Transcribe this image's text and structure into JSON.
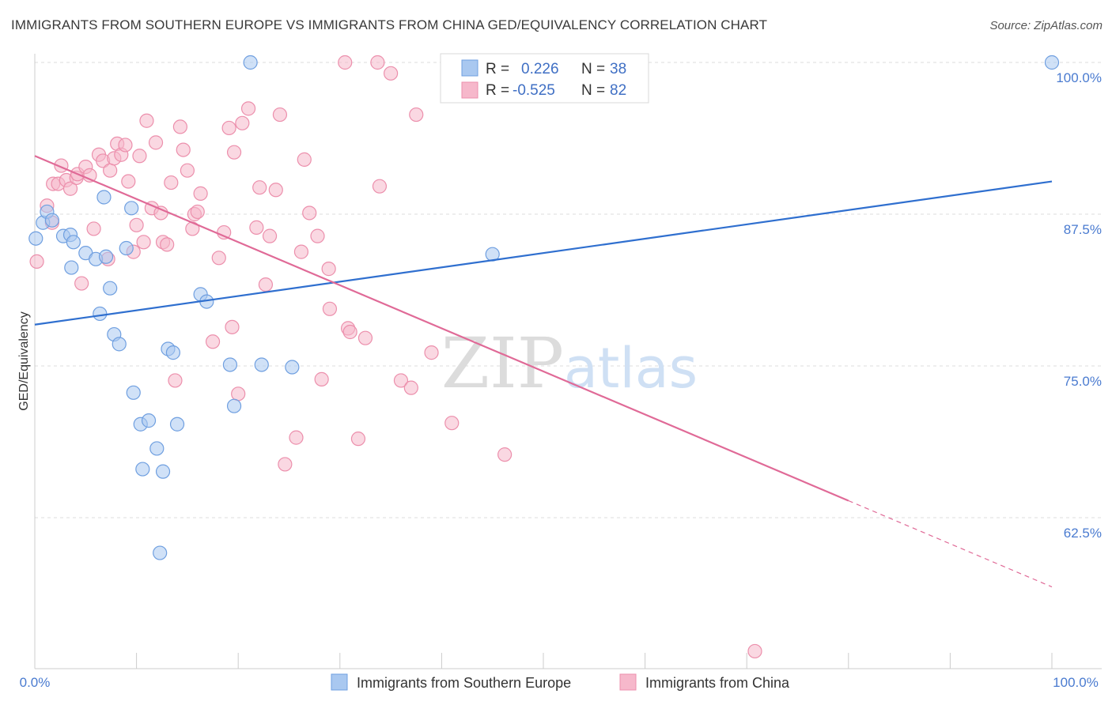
{
  "title": "IMMIGRANTS FROM SOUTHERN EUROPE VS IMMIGRANTS FROM CHINA GED/EQUIVALENCY CORRELATION CHART",
  "source": "Source: ZipAtlas.com",
  "watermark": "ZIPatlas",
  "colors": {
    "blue_fill": "#a9c8f0",
    "blue_stroke": "#6f9fe0",
    "blue_line": "#2f6fcf",
    "pink_fill": "#f6b8cb",
    "pink_stroke": "#ec8fac",
    "pink_line": "#e06a97",
    "tick_text": "#4a7bd0",
    "grid": "#dddddd"
  },
  "legend": {
    "rows": [
      {
        "r_label": "R =",
        "r_value": "0.226",
        "n_label": "N =",
        "n_value": "38"
      },
      {
        "r_label": "R =",
        "r_value": "-0.525",
        "n_label": "N =",
        "n_value": "82"
      }
    ]
  },
  "chart_data": {
    "type": "scatter",
    "ylabel": "GED/Equivalency",
    "xlim": [
      0,
      100
    ],
    "ylim": [
      50,
      101.5
    ],
    "yticks": [
      {
        "value": 100,
        "label": "100.0%"
      },
      {
        "value": 87.5,
        "label": "87.5%"
      },
      {
        "value": 75,
        "label": "75.0%"
      },
      {
        "value": 62.5,
        "label": "62.5%"
      }
    ],
    "xtick_labels": {
      "left": "0.0%",
      "right": "100.0%"
    },
    "series": [
      {
        "name": "Immigrants from Southern Europe",
        "trend": {
          "x": [
            0,
            100
          ],
          "y": [
            78.4,
            90.2
          ]
        },
        "points": [
          [
            0.1,
            85.5
          ],
          [
            0.8,
            86.8
          ],
          [
            1.2,
            87.7
          ],
          [
            1.7,
            87.0
          ],
          [
            2.8,
            85.7
          ],
          [
            3.6,
            83.1
          ],
          [
            3.5,
            85.8
          ],
          [
            3.8,
            85.2
          ],
          [
            5.0,
            84.3
          ],
          [
            6.0,
            83.8
          ],
          [
            7.0,
            84.0
          ],
          [
            6.4,
            79.3
          ],
          [
            6.8,
            88.9
          ],
          [
            7.4,
            81.4
          ],
          [
            7.8,
            77.6
          ],
          [
            8.3,
            76.8
          ],
          [
            9.0,
            84.7
          ],
          [
            9.5,
            88.0
          ],
          [
            9.7,
            72.8
          ],
          [
            10.4,
            70.2
          ],
          [
            10.6,
            66.5
          ],
          [
            11.2,
            70.5
          ],
          [
            12.0,
            68.2
          ],
          [
            12.3,
            59.6
          ],
          [
            12.6,
            66.3
          ],
          [
            13.1,
            76.4
          ],
          [
            13.6,
            76.1
          ],
          [
            14.0,
            70.2
          ],
          [
            16.3,
            80.9
          ],
          [
            16.9,
            80.3
          ],
          [
            19.2,
            75.1
          ],
          [
            19.6,
            71.7
          ],
          [
            21.2,
            100.0
          ],
          [
            22.3,
            75.1
          ],
          [
            25.3,
            74.9
          ],
          [
            45.0,
            84.2
          ],
          [
            100.0,
            100.0
          ]
        ]
      },
      {
        "name": "Immigrants from China",
        "trend": {
          "x": [
            0,
            80
          ],
          "y": [
            92.3,
            63.9
          ]
        },
        "trend_dashed": {
          "x": [
            80,
            100
          ],
          "y": [
            63.9,
            56.8
          ]
        },
        "points": [
          [
            0.2,
            83.6
          ],
          [
            1.2,
            88.2
          ],
          [
            1.7,
            86.8
          ],
          [
            1.8,
            90.0
          ],
          [
            2.3,
            90.0
          ],
          [
            2.6,
            91.5
          ],
          [
            3.1,
            90.3
          ],
          [
            3.5,
            89.6
          ],
          [
            4.1,
            90.5
          ],
          [
            4.2,
            90.8
          ],
          [
            4.6,
            81.8
          ],
          [
            5.0,
            91.4
          ],
          [
            5.4,
            90.7
          ],
          [
            5.8,
            86.3
          ],
          [
            6.3,
            92.4
          ],
          [
            6.7,
            91.9
          ],
          [
            7.2,
            83.8
          ],
          [
            7.4,
            91.1
          ],
          [
            7.8,
            92.1
          ],
          [
            8.1,
            93.3
          ],
          [
            8.5,
            92.4
          ],
          [
            8.9,
            93.2
          ],
          [
            9.2,
            90.2
          ],
          [
            9.7,
            84.4
          ],
          [
            10.0,
            86.6
          ],
          [
            10.3,
            92.3
          ],
          [
            10.7,
            85.2
          ],
          [
            11.0,
            95.2
          ],
          [
            11.5,
            88.0
          ],
          [
            11.9,
            93.4
          ],
          [
            12.4,
            87.6
          ],
          [
            12.6,
            85.2
          ],
          [
            13.0,
            85.0
          ],
          [
            13.4,
            90.1
          ],
          [
            13.8,
            73.8
          ],
          [
            14.3,
            94.7
          ],
          [
            14.6,
            92.8
          ],
          [
            15.0,
            91.1
          ],
          [
            15.5,
            86.3
          ],
          [
            15.7,
            87.5
          ],
          [
            16.0,
            87.7
          ],
          [
            16.3,
            89.2
          ],
          [
            17.5,
            77.0
          ],
          [
            18.1,
            83.9
          ],
          [
            18.6,
            86.0
          ],
          [
            19.1,
            94.6
          ],
          [
            19.4,
            78.2
          ],
          [
            19.6,
            92.6
          ],
          [
            20.0,
            72.7
          ],
          [
            20.4,
            95.0
          ],
          [
            21.0,
            96.2
          ],
          [
            21.8,
            86.4
          ],
          [
            22.1,
            89.7
          ],
          [
            22.7,
            81.7
          ],
          [
            23.1,
            85.7
          ],
          [
            23.7,
            89.5
          ],
          [
            24.1,
            95.7
          ],
          [
            24.6,
            66.9
          ],
          [
            25.7,
            69.1
          ],
          [
            26.2,
            84.4
          ],
          [
            26.5,
            92.0
          ],
          [
            27.0,
            87.6
          ],
          [
            27.8,
            85.7
          ],
          [
            28.2,
            73.9
          ],
          [
            28.9,
            83.0
          ],
          [
            29.0,
            79.7
          ],
          [
            30.5,
            100.0
          ],
          [
            30.8,
            78.1
          ],
          [
            31.0,
            77.8
          ],
          [
            31.8,
            69.0
          ],
          [
            32.5,
            77.3
          ],
          [
            33.7,
            100.0
          ],
          [
            33.9,
            89.8
          ],
          [
            35.0,
            99.1
          ],
          [
            36.0,
            73.8
          ],
          [
            37.0,
            73.2
          ],
          [
            37.5,
            95.7
          ],
          [
            39.0,
            76.1
          ],
          [
            41.0,
            70.3
          ],
          [
            46.2,
            67.7
          ],
          [
            70.8,
            51.5
          ]
        ]
      }
    ]
  }
}
